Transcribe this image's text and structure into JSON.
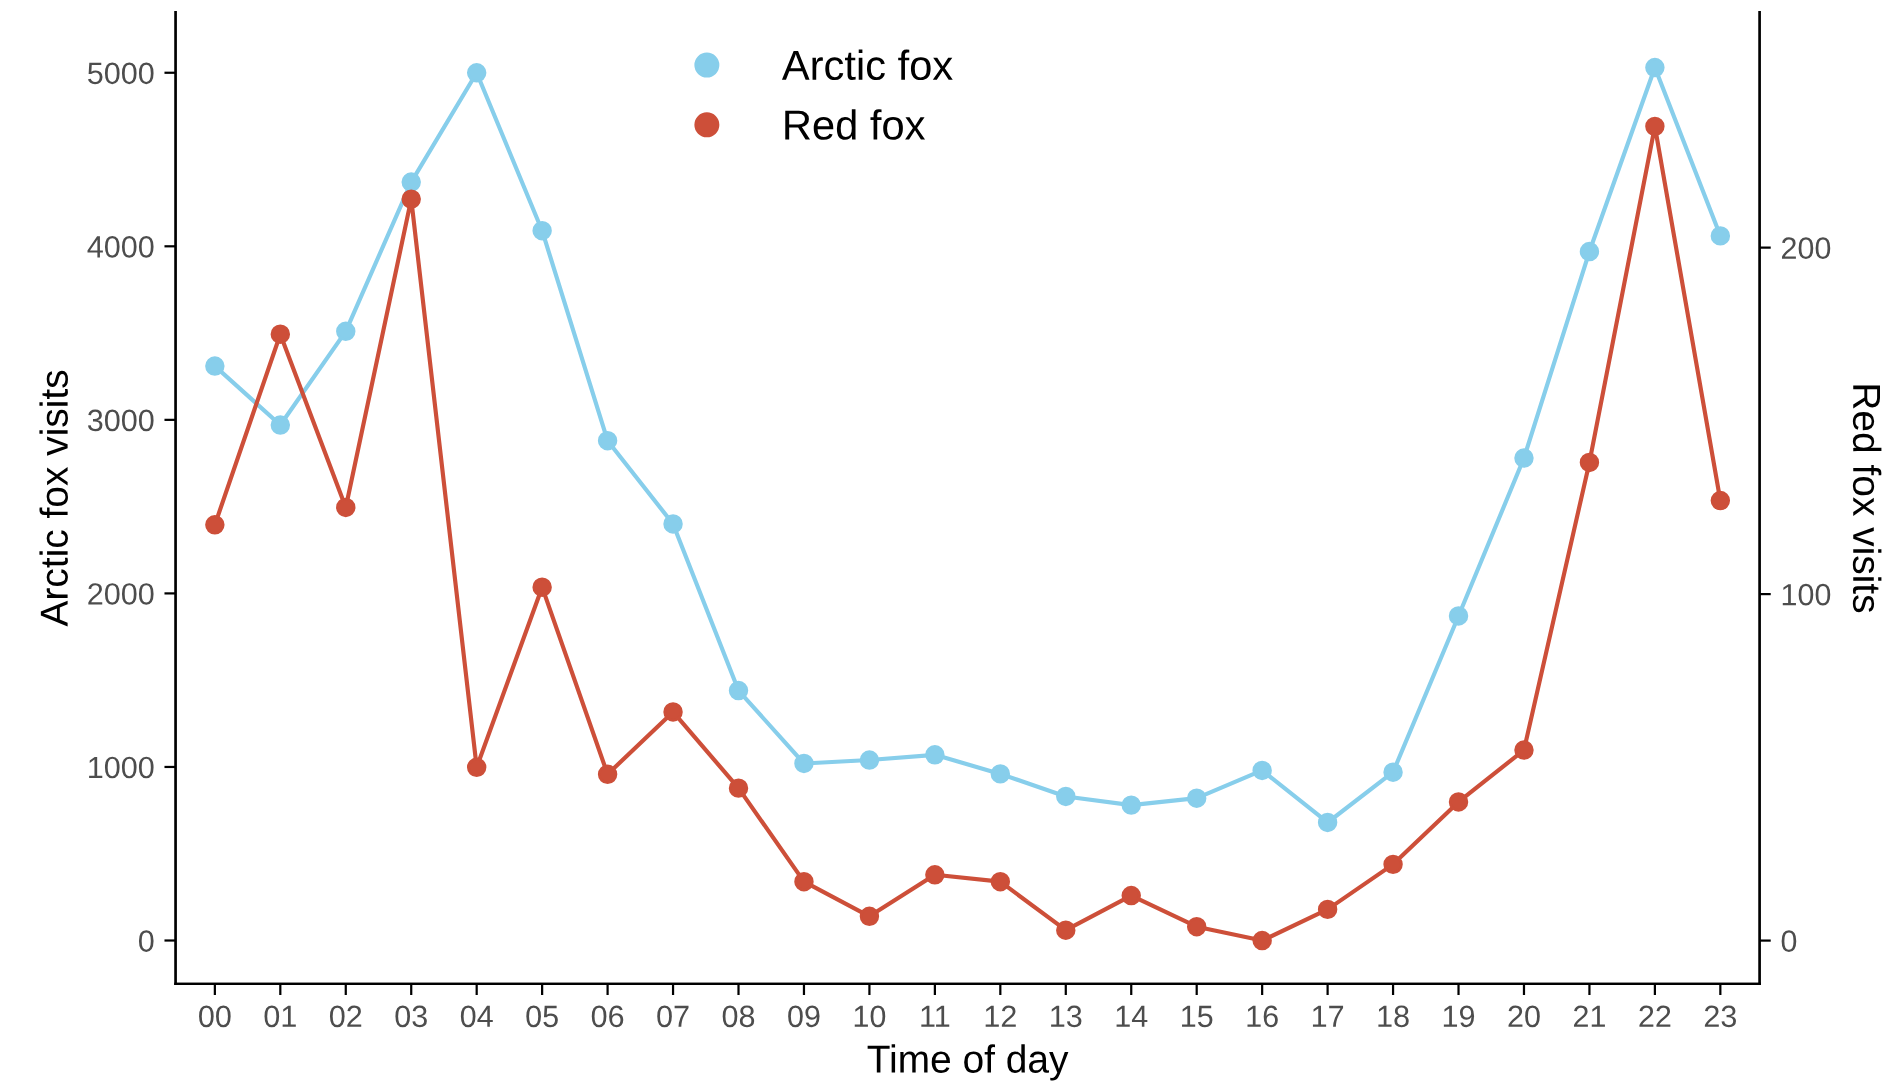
{
  "chart_data": {
    "type": "line",
    "xlabel": "Time of day",
    "ylabel": "Arctic fox visits",
    "y2label": "Red fox visits",
    "categories": [
      "00",
      "01",
      "02",
      "03",
      "04",
      "05",
      "06",
      "07",
      "08",
      "09",
      "10",
      "11",
      "12",
      "13",
      "14",
      "15",
      "16",
      "17",
      "18",
      "19",
      "20",
      "21",
      "22",
      "23"
    ],
    "series": [
      {
        "name": "Arctic fox",
        "color": "#87ceeb",
        "values": [
          3310,
          2970,
          3510,
          4370,
          5000,
          4090,
          2880,
          2400,
          1440,
          1020,
          1040,
          1070,
          960,
          830,
          780,
          820,
          980,
          680,
          970,
          1870,
          2780,
          3970,
          5030,
          4060
        ]
      },
      {
        "name": "Red fox",
        "color": "#cd4f39",
        "axis": "y2",
        "values": [
          120,
          175,
          125,
          214,
          50,
          102,
          48,
          66,
          44,
          17,
          7,
          19,
          17,
          3,
          13,
          4,
          0,
          9,
          22,
          40,
          55,
          138,
          235,
          127
        ]
      }
    ],
    "ylim": [
      -250,
      5350
    ],
    "yticks": [
      0,
      1000,
      2000,
      3000,
      4000,
      5000
    ],
    "y2lim": [
      -12.5,
      268
    ],
    "y2ticks": [
      0,
      100,
      200
    ],
    "marker": "circle",
    "line_style": "solid",
    "grid": false,
    "legend": "top"
  }
}
